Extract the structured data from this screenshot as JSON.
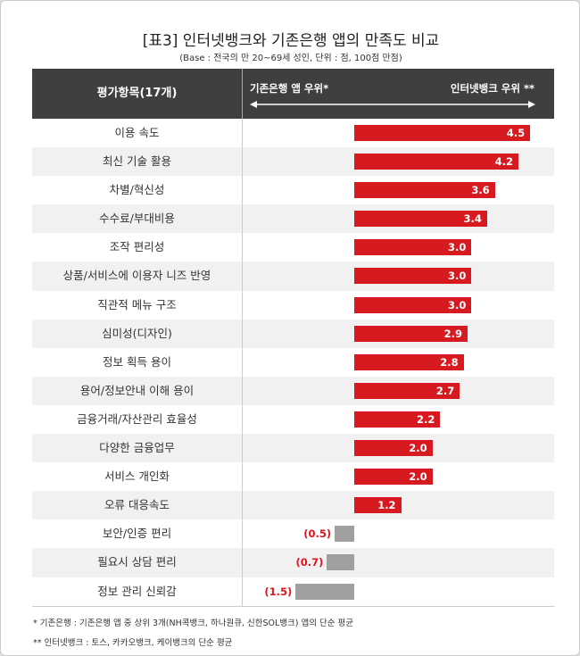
{
  "title": "[표3] 인터넷뱅크와 기존은행 앱의 만족도 비교",
  "subtitle": "(Base : 전국의 만 20~69세 성인, 단위 :  점, 100점 만점)",
  "chart_data": {
    "type": "bar",
    "orientation": "horizontal",
    "header": {
      "item_column": "평가항목(17개)",
      "left_label": "기존은행 앱 우위*",
      "right_label": "인터넷뱅크 우위 **"
    },
    "categories": [
      "이용 속도",
      "최신 기술 활용",
      "차별/혁신성",
      "수수료/부대비용",
      "조작 편리성",
      "상품/서비스에 이용자 니즈 반영",
      "직관적 메뉴 구조",
      "심미성(디자인)",
      "정보 획득 용이",
      "용어/정보안내 이해 용이",
      "금융거래/자산관리 효율성",
      "다양한 금융업무",
      "서비스 개인화",
      "오류 대응속도",
      "보안/인증 편리",
      "필요시 상담 편리",
      "정보 관리 신뢰감"
    ],
    "values": [
      4.5,
      4.2,
      3.6,
      3.4,
      3.0,
      3.0,
      3.0,
      2.9,
      2.8,
      2.7,
      2.2,
      2.0,
      2.0,
      1.2,
      -0.5,
      -0.7,
      -1.5
    ],
    "labels": [
      "4.5",
      "4.2",
      "3.6",
      "3.4",
      "3.0",
      "3.0",
      "3.0",
      "2.9",
      "2.8",
      "2.7",
      "2.2",
      "2.0",
      "2.0",
      "1.2",
      "(0.5)",
      "(0.7)",
      "(1.5)"
    ],
    "colors": {
      "positive": "#d71920",
      "negative": "#a0a0a0",
      "negative_label": "#e0141e",
      "header_bg": "#3f3f3f"
    }
  },
  "notes": [
    "* 기존은행 : 기존은행 앱 중 상위 3개(NH콕뱅크, 하나원큐, 신한SOL뱅크) 앱의 단순 평균",
    "** 인터넷뱅크 : 토스, 카카오뱅크, 케이뱅크의 단순 평균"
  ]
}
